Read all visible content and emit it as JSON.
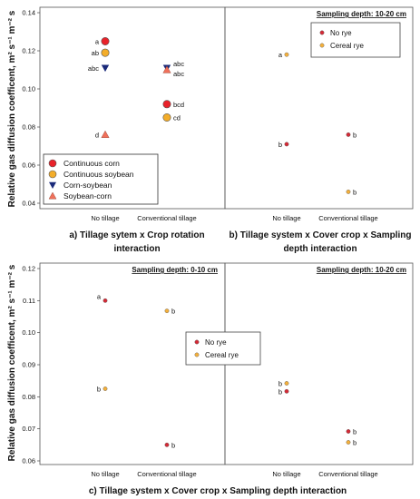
{
  "colors": {
    "red": "#e8222a",
    "orange": "#f3ad2a",
    "navy": "#1a2a7a",
    "salmon": "#f0705a",
    "small_red": "#d42a36",
    "small_orange": "#f4b03c"
  },
  "chart_data": [
    {
      "type": "scatter",
      "panel": "a",
      "caption_line1": "a) Tillage sytem x Crop rotation",
      "caption_line2": "interaction",
      "ylabel": "Relative gas diffusion coefficent, m² s⁻¹ m⁻² s",
      "ylim": [
        0.04,
        0.14
      ],
      "yticks": [
        "0.04",
        "0.06",
        "0.08",
        "0.10",
        "0.12",
        "0.14"
      ],
      "categories": [
        "No tillage",
        "Conventional tillage"
      ],
      "legend": {
        "position": "bottom-left"
      },
      "series": [
        {
          "name": "Continuous corn",
          "marker": "circle",
          "color": "red",
          "values": [
            0.125,
            0.092
          ],
          "labels": [
            "a",
            "bcd"
          ]
        },
        {
          "name": "Continuous soybean",
          "marker": "circle",
          "color": "orange",
          "values": [
            0.119,
            0.085
          ],
          "labels": [
            "ab",
            "cd"
          ]
        },
        {
          "name": "Corn-soybean",
          "marker": "triangle-down",
          "color": "navy",
          "values": [
            0.111,
            0.111
          ],
          "labels": [
            "abc",
            "abc"
          ]
        },
        {
          "name": "Soybean-corn",
          "marker": "triangle-up",
          "color": "salmon",
          "values": [
            0.076,
            0.11
          ],
          "labels": [
            "d",
            "abc"
          ]
        }
      ]
    },
    {
      "type": "scatter",
      "panel": "b",
      "caption_line1": "b) Tillage system x Cover crop x Sampling",
      "caption_line2": "depth interaction",
      "depth_label": "Sampling depth: 10-20 cm",
      "ylim": [
        0.04,
        0.14
      ],
      "categories": [
        "No tillage",
        "Conventional tillage"
      ],
      "legend": {
        "position": "top-right"
      },
      "series": [
        {
          "name": "No rye",
          "marker": "circle",
          "color": "small_red",
          "values": [
            0.071,
            0.076
          ],
          "labels": [
            "b",
            "b"
          ]
        },
        {
          "name": "Cereal rye",
          "marker": "circle",
          "color": "small_orange",
          "values": [
            0.118,
            0.046
          ],
          "labels": [
            "a",
            "b"
          ]
        }
      ]
    },
    {
      "type": "scatter",
      "panel": "c",
      "caption": "c) Tillage system x Cover crop x Sampling depth interaction",
      "ylabel": "Relative gas diffusion coefficent, m² s⁻¹ m⁻² s",
      "ylim": [
        0.06,
        0.12
      ],
      "yticks": [
        "0.06",
        "0.07",
        "0.08",
        "0.09",
        "0.10",
        "0.11",
        "0.12"
      ],
      "legend": {
        "position": "center"
      },
      "subpanels": [
        {
          "depth_label": "Sampling depth: 0-10 cm",
          "categories": [
            "No tillage",
            "Conventional tillage"
          ],
          "series": [
            {
              "name": "No rye",
              "marker": "circle",
              "color": "small_red",
              "values": [
                0.11,
                0.065
              ],
              "labels": [
                "a",
                "b"
              ]
            },
            {
              "name": "Cereal rye",
              "marker": "circle",
              "color": "small_orange",
              "values": [
                0.0825,
                0.1068
              ],
              "labels": [
                "b",
                "b"
              ]
            }
          ]
        },
        {
          "depth_label": "Sampling depth: 10-20 cm",
          "categories": [
            "No tillage",
            "Conventional tillage"
          ],
          "series": [
            {
              "name": "No rye",
              "marker": "circle",
              "color": "small_red",
              "values": [
                0.0817,
                0.0692
              ],
              "labels": [
                "b",
                "b"
              ]
            },
            {
              "name": "Cereal rye",
              "marker": "circle",
              "color": "small_orange",
              "values": [
                0.0842,
                0.0658
              ],
              "labels": [
                "b",
                "b"
              ]
            }
          ]
        }
      ]
    }
  ]
}
